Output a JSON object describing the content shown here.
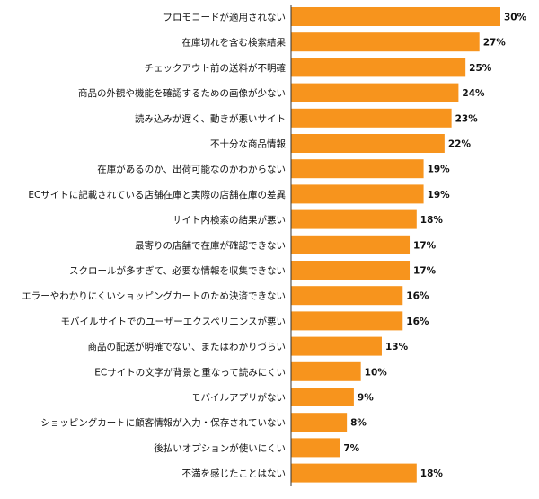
{
  "chart_data": {
    "type": "bar",
    "orientation": "horizontal",
    "categories": [
      "プロモコードが適用されない",
      "在庫切れを含む検索結果",
      "チェックアウト前の送料が不明確",
      "商品の外観や機能を確認するための画像が少ない",
      "読み込みが遅く、動きが悪いサイト",
      "不十分な商品情報",
      "在庫があるのか、出荷可能なのかわからない",
      "ECサイトに記載されている店舗在庫と実際の店舗在庫の差異",
      "サイト内検索の結果が悪い",
      "最寄りの店舗で在庫が確認できない",
      "スクロールが多すぎて、必要な情報を収集できない",
      "エラーやわかりにくいショッピングカートのため決済できない",
      "モバイルサイトでのユーザーエクスペリエンスが悪い",
      "商品の配送が明確でない、またはわかりづらい",
      "ECサイトの文字が背景と重なって読みにくい",
      "モバイルアプリがない",
      "ショッピングカートに顧客情報が入力・保存されていない",
      "後払いオプションが使いにくい",
      "不満を感じたことはない"
    ],
    "values": [
      30,
      27,
      25,
      24,
      23,
      22,
      19,
      19,
      18,
      17,
      17,
      16,
      16,
      13,
      10,
      9,
      8,
      7,
      18
    ],
    "value_labels": [
      "30%",
      "27%",
      "25%",
      "24%",
      "23%",
      "22%",
      "19%",
      "19%",
      "18%",
      "17%",
      "17%",
      "16%",
      "16%",
      "13%",
      "10%",
      "9%",
      "8%",
      "7%",
      "18%"
    ],
    "unit": "%",
    "xlim": [
      0,
      30
    ],
    "bar_color": "#F7941D",
    "axis_color": "#333333",
    "grid": false,
    "legend": "none"
  }
}
